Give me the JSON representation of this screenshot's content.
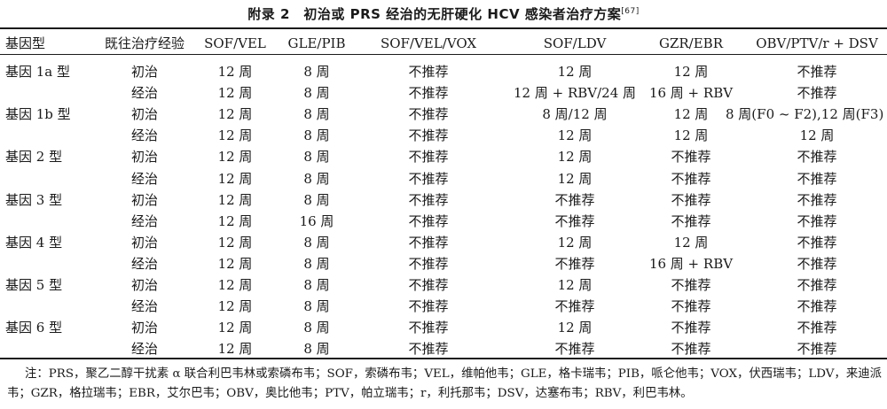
{
  "title": "附录 2　初治或 PRS 经治的无肝硬化 HCV 感染者治疗方案",
  "title_ref": "[67]",
  "headers": [
    "基因型",
    "既往治疗经验",
    "SOF/VEL",
    "GLE/PIB",
    "SOF/VEL/VOX",
    "SOF/LDV",
    "GZR/EBR",
    "OBV/PTV/r + DSV"
  ],
  "rows": [
    {
      "geno": "基因 1a 型",
      "exp": "初治",
      "sof_vel": "12 周",
      "gle_pib": "8 周",
      "sof_vel_vox": "不推荐",
      "sof_ldv": "12 周",
      "gzr_ebr": "12 周",
      "obv": "不推荐"
    },
    {
      "geno": "",
      "exp": "经治",
      "sof_vel": "12 周",
      "gle_pib": "8 周",
      "sof_vel_vox": "不推荐",
      "sof_ldv": "12 周 + RBV/24 周",
      "gzr_ebr": "16 周 + RBV",
      "obv": "不推荐"
    },
    {
      "geno": "基因 1b 型",
      "exp": "初治",
      "sof_vel": "12 周",
      "gle_pib": "8 周",
      "sof_vel_vox": "不推荐",
      "sof_ldv": "8 周/12 周",
      "gzr_ebr": "12 周",
      "obv": "8 周(F0 ~ F2),12 周(F3)"
    },
    {
      "geno": "",
      "exp": "经治",
      "sof_vel": "12 周",
      "gle_pib": "8 周",
      "sof_vel_vox": "不推荐",
      "sof_ldv": "12 周",
      "gzr_ebr": "12 周",
      "obv": "12 周"
    },
    {
      "geno": "基因 2 型",
      "exp": "初治",
      "sof_vel": "12 周",
      "gle_pib": "8 周",
      "sof_vel_vox": "不推荐",
      "sof_ldv": "12 周",
      "gzr_ebr": "不推荐",
      "obv": "不推荐"
    },
    {
      "geno": "",
      "exp": "经治",
      "sof_vel": "12 周",
      "gle_pib": "8 周",
      "sof_vel_vox": "不推荐",
      "sof_ldv": "12 周",
      "gzr_ebr": "不推荐",
      "obv": "不推荐"
    },
    {
      "geno": "基因 3 型",
      "exp": "初治",
      "sof_vel": "12 周",
      "gle_pib": "8 周",
      "sof_vel_vox": "不推荐",
      "sof_ldv": "不推荐",
      "gzr_ebr": "不推荐",
      "obv": "不推荐"
    },
    {
      "geno": "",
      "exp": "经治",
      "sof_vel": "12 周",
      "gle_pib": "16 周",
      "sof_vel_vox": "不推荐",
      "sof_ldv": "不推荐",
      "gzr_ebr": "不推荐",
      "obv": "不推荐"
    },
    {
      "geno": "基因 4 型",
      "exp": "初治",
      "sof_vel": "12 周",
      "gle_pib": "8 周",
      "sof_vel_vox": "不推荐",
      "sof_ldv": "12 周",
      "gzr_ebr": "12 周",
      "obv": "不推荐"
    },
    {
      "geno": "",
      "exp": "经治",
      "sof_vel": "12 周",
      "gle_pib": "8 周",
      "sof_vel_vox": "不推荐",
      "sof_ldv": "不推荐",
      "gzr_ebr": "16 周 + RBV",
      "obv": "不推荐"
    },
    {
      "geno": "基因 5 型",
      "exp": "初治",
      "sof_vel": "12 周",
      "gle_pib": "8 周",
      "sof_vel_vox": "不推荐",
      "sof_ldv": "12 周",
      "gzr_ebr": "不推荐",
      "obv": "不推荐"
    },
    {
      "geno": "",
      "exp": "经治",
      "sof_vel": "12 周",
      "gle_pib": "8 周",
      "sof_vel_vox": "不推荐",
      "sof_ldv": "不推荐",
      "gzr_ebr": "不推荐",
      "obv": "不推荐"
    },
    {
      "geno": "基因 6 型",
      "exp": "初治",
      "sof_vel": "12 周",
      "gle_pib": "8 周",
      "sof_vel_vox": "不推荐",
      "sof_ldv": "12 周",
      "gzr_ebr": "不推荐",
      "obv": "不推荐"
    },
    {
      "geno": "",
      "exp": "经治",
      "sof_vel": "12 周",
      "gle_pib": "8 周",
      "sof_vel_vox": "不推荐",
      "sof_ldv": "不推荐",
      "gzr_ebr": "不推荐",
      "obv": "不推荐"
    }
  ],
  "note": "注：PRS，聚乙二醇干扰素 α 联合利巴韦林或索磷布韦；SOF，索磷布韦；VEL，维帕他韦；GLE，格卡瑞韦；PIB，哌仑他韦；VOX，伏西瑞韦；LDV，来迪派韦；GZR，格拉瑞韦；EBR，艾尔巴韦；OBV，奥比他韦；PTV，帕立瑞韦；r，利托那韦；DSV，达塞布韦；RBV，利巴韦林。"
}
